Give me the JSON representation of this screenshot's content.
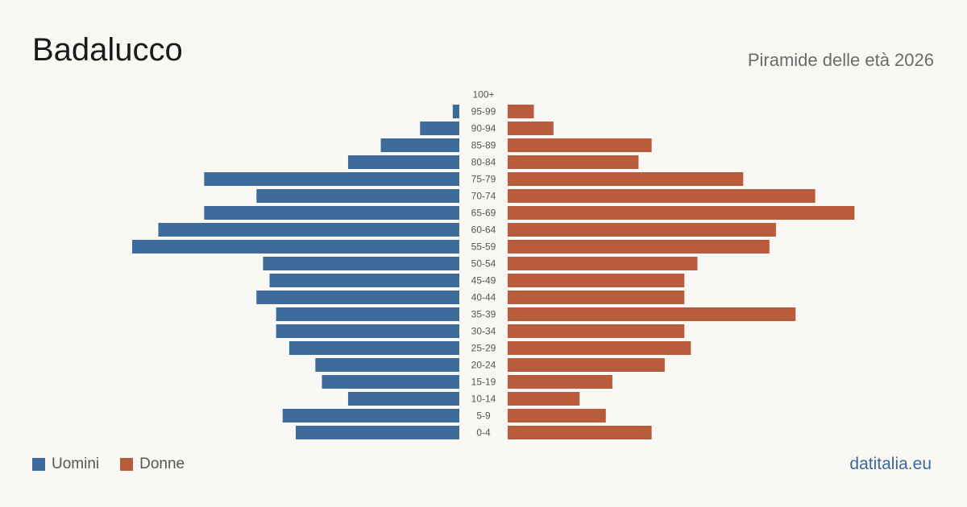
{
  "title": "Badalucco",
  "subtitle": "Piramide delle età 2026",
  "brand": "datitalia.eu",
  "colors": {
    "men": "#3d6b9b",
    "women": "#b85c3c",
    "background": "#faf8f4"
  },
  "legend": [
    {
      "label": "Uomini",
      "color_key": "men"
    },
    {
      "label": "Donne",
      "color_key": "women"
    }
  ],
  "chart_data": {
    "type": "bar",
    "orientation": "horizontal-population-pyramid",
    "categories": [
      "100+",
      "95-99",
      "90-94",
      "85-89",
      "80-84",
      "75-79",
      "70-74",
      "65-69",
      "60-64",
      "55-59",
      "50-54",
      "45-49",
      "40-44",
      "35-39",
      "30-34",
      "25-29",
      "20-24",
      "15-19",
      "10-14",
      "5-9",
      "0-4"
    ],
    "series": [
      {
        "name": "Uomini",
        "side": "left",
        "values": [
          0,
          1,
          6,
          12,
          17,
          39,
          31,
          39,
          46,
          50,
          30,
          29,
          31,
          28,
          28,
          26,
          22,
          21,
          17,
          27,
          25
        ]
      },
      {
        "name": "Donne",
        "side": "right",
        "values": [
          0,
          4,
          7,
          22,
          20,
          36,
          47,
          53,
          41,
          40,
          29,
          27,
          27,
          44,
          27,
          28,
          24,
          16,
          11,
          15,
          22
        ]
      }
    ]
  }
}
